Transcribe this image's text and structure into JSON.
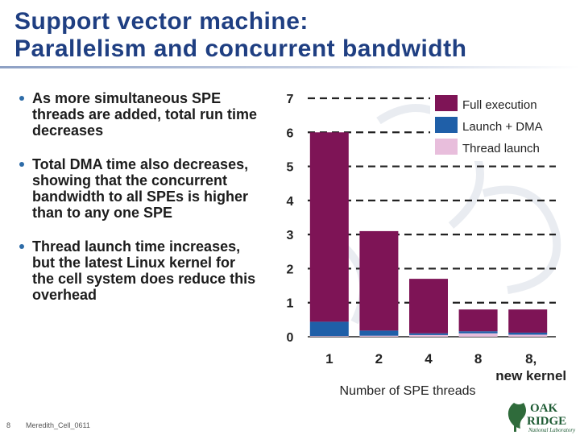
{
  "slide": {
    "title_line1": "Support vector machine:",
    "title_line2": "Parallelism and concurrent bandwidth",
    "bullets": [
      "As more simultaneous SPE threads are added, total run time decreases",
      "Total DMA time also decreases, showing that the concurrent bandwidth to all SPEs is higher than to any one SPE",
      "Thread launch time increases, but the latest Linux kernel for the cell system does reduce this overhead"
    ],
    "footer": {
      "page_number": "8",
      "source": "Meredith_Cell_0611"
    },
    "logo": {
      "line1": "OAK",
      "line2": "RIDGE",
      "line3": "National Laboratory"
    }
  },
  "colors": {
    "title": "#1f3f82",
    "full_execution": "#7e1456",
    "launch_dma": "#1f5fa8",
    "thread_launch": "#e8bedc",
    "bullet": "#2e6ca8"
  },
  "chart_data": {
    "type": "bar",
    "stacked": true,
    "xlabel": "Number of SPE threads",
    "ylabel": "",
    "categories": [
      "1",
      "2",
      "4",
      "8",
      "8, new kernel"
    ],
    "ylim": [
      0,
      7
    ],
    "yticks": [
      0,
      1,
      2,
      3,
      4,
      5,
      6,
      7
    ],
    "grid": "dashed",
    "legend_position": "top-right",
    "series": [
      {
        "name": "Thread launch",
        "values": [
          0.02,
          0.03,
          0.05,
          0.1,
          0.06
        ]
      },
      {
        "name": "Launch + DMA",
        "values": [
          0.42,
          0.15,
          0.05,
          0.06,
          0.06
        ]
      },
      {
        "name": "Full execution",
        "values": [
          5.56,
          2.92,
          1.6,
          0.64,
          0.68
        ]
      }
    ]
  }
}
